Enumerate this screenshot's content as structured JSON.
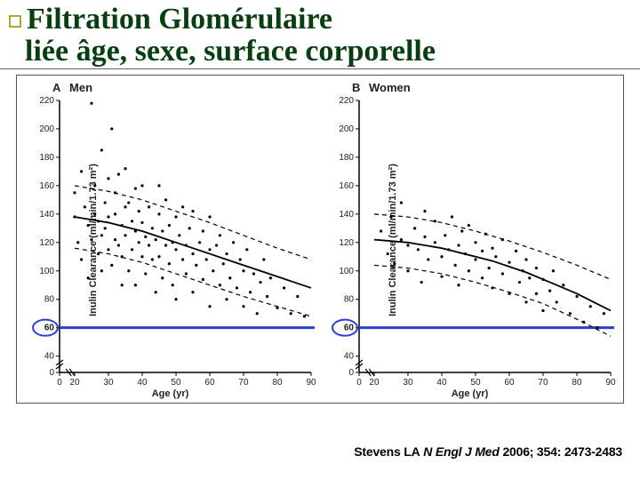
{
  "title": {
    "line1": "Filtration Glomérulaire",
    "line2": "liée âge, sexe, surface corporelle",
    "color": "#083f11",
    "fontsize": 34
  },
  "citation": {
    "author": "Stevens LA",
    "journal": "N Engl J Med",
    "year_vol_pages": "2006; 354: 2473-2483"
  },
  "common_axes": {
    "x": {
      "label": "Age (yr)",
      "min": 0,
      "max": 90,
      "tick_step": 10,
      "break_before": 20
    },
    "y": {
      "label": "Inulin Clearance (ml/min/1.73 m²)",
      "min": 0,
      "max": 220,
      "tick_step": 20,
      "break_before": 40,
      "highlight_tick": 60
    },
    "tick_fontsize": 10,
    "label_fontsize": 11,
    "axis_color": "#000000",
    "tick_len": 4,
    "break_symbol": "//"
  },
  "highlight_line": {
    "y_value": 60,
    "color": "#2b3fd1",
    "width": 3
  },
  "highlight_circle": {
    "color": "#2b3fd1",
    "width": 2,
    "rx": 14,
    "ry": 9
  },
  "curve_style": {
    "mean_color": "#000000",
    "mean_width": 1.8,
    "ci_color": "#000000",
    "ci_width": 1.2,
    "ci_dash": "5,4",
    "marker_size": 1.6,
    "marker_color": "#000000"
  },
  "panels": [
    {
      "letter": "A",
      "label": "Men",
      "mean_curve": [
        [
          20,
          138
        ],
        [
          25,
          136
        ],
        [
          30,
          134
        ],
        [
          35,
          131
        ],
        [
          40,
          128
        ],
        [
          45,
          124
        ],
        [
          50,
          120
        ],
        [
          55,
          116
        ],
        [
          60,
          112
        ],
        [
          65,
          108
        ],
        [
          70,
          104
        ],
        [
          75,
          100
        ],
        [
          80,
          96
        ],
        [
          85,
          92
        ],
        [
          90,
          88
        ]
      ],
      "upper_ci": [
        [
          20,
          160
        ],
        [
          30,
          156
        ],
        [
          40,
          150
        ],
        [
          50,
          142
        ],
        [
          60,
          134
        ],
        [
          70,
          125
        ],
        [
          80,
          116
        ],
        [
          90,
          108
        ]
      ],
      "lower_ci": [
        [
          20,
          116
        ],
        [
          30,
          112
        ],
        [
          40,
          106
        ],
        [
          50,
          98
        ],
        [
          60,
          90
        ],
        [
          70,
          82
        ],
        [
          80,
          75
        ],
        [
          90,
          68
        ]
      ],
      "points": [
        [
          20,
          138
        ],
        [
          20,
          155
        ],
        [
          21,
          120
        ],
        [
          22,
          170
        ],
        [
          22,
          108
        ],
        [
          23,
          145
        ],
        [
          24,
          132
        ],
        [
          24,
          95
        ],
        [
          25,
          218
        ],
        [
          25,
          122
        ],
        [
          26,
          140
        ],
        [
          26,
          160
        ],
        [
          27,
          112
        ],
        [
          27,
          135
        ],
        [
          28,
          125
        ],
        [
          28,
          185
        ],
        [
          28,
          100
        ],
        [
          29,
          148
        ],
        [
          29,
          130
        ],
        [
          30,
          115
        ],
        [
          30,
          138
        ],
        [
          30,
          165
        ],
        [
          31,
          200
        ],
        [
          31,
          104
        ],
        [
          32,
          140
        ],
        [
          32,
          122
        ],
        [
          32,
          155
        ],
        [
          33,
          118
        ],
        [
          33,
          168
        ],
        [
          34,
          110
        ],
        [
          34,
          132
        ],
        [
          34,
          90
        ],
        [
          35,
          145
        ],
        [
          35,
          125
        ],
        [
          35,
          172
        ],
        [
          36,
          100
        ],
        [
          36,
          148
        ],
        [
          37,
          135
        ],
        [
          37,
          115
        ],
        [
          38,
          128
        ],
        [
          38,
          158
        ],
        [
          38,
          90
        ],
        [
          39,
          120
        ],
        [
          39,
          142
        ],
        [
          40,
          110
        ],
        [
          40,
          134
        ],
        [
          40,
          160
        ],
        [
          41,
          124
        ],
        [
          41,
          98
        ],
        [
          42,
          118
        ],
        [
          42,
          145
        ],
        [
          43,
          108
        ],
        [
          43,
          130
        ],
        [
          44,
          85
        ],
        [
          44,
          122
        ],
        [
          45,
          140
        ],
        [
          45,
          110
        ],
        [
          45,
          160
        ],
        [
          46,
          95
        ],
        [
          46,
          128
        ],
        [
          47,
          118
        ],
        [
          47,
          150
        ],
        [
          48,
          105
        ],
        [
          48,
          132
        ],
        [
          49,
          90
        ],
        [
          49,
          120
        ],
        [
          50,
          115
        ],
        [
          50,
          138
        ],
        [
          50,
          80
        ],
        [
          51,
          125
        ],
        [
          52,
          108
        ],
        [
          52,
          145
        ],
        [
          53,
          98
        ],
        [
          53,
          118
        ],
        [
          54,
          130
        ],
        [
          55,
          85
        ],
        [
          55,
          112
        ],
        [
          55,
          142
        ],
        [
          56,
          104
        ],
        [
          57,
          120
        ],
        [
          58,
          94
        ],
        [
          58,
          128
        ],
        [
          59,
          108
        ],
        [
          60,
          75
        ],
        [
          60,
          115
        ],
        [
          60,
          138
        ],
        [
          61,
          100
        ],
        [
          62,
          118
        ],
        [
          63,
          90
        ],
        [
          63,
          125
        ],
        [
          64,
          105
        ],
        [
          65,
          80
        ],
        [
          65,
          112
        ],
        [
          66,
          95
        ],
        [
          67,
          120
        ],
        [
          68,
          88
        ],
        [
          69,
          108
        ],
        [
          70,
          75
        ],
        [
          70,
          100
        ],
        [
          71,
          115
        ],
        [
          72,
          85
        ],
        [
          73,
          98
        ],
        [
          74,
          70
        ],
        [
          75,
          92
        ],
        [
          76,
          108
        ],
        [
          77,
          82
        ],
        [
          78,
          95
        ],
        [
          80,
          74
        ],
        [
          82,
          88
        ],
        [
          84,
          70
        ],
        [
          86,
          82
        ],
        [
          88,
          68
        ]
      ]
    },
    {
      "letter": "B",
      "label": "Women",
      "mean_curve": [
        [
          20,
          122
        ],
        [
          25,
          121
        ],
        [
          30,
          120
        ],
        [
          35,
          118
        ],
        [
          40,
          116
        ],
        [
          45,
          113
        ],
        [
          50,
          110
        ],
        [
          55,
          107
        ],
        [
          60,
          103
        ],
        [
          65,
          99
        ],
        [
          70,
          94
        ],
        [
          75,
          89
        ],
        [
          80,
          84
        ],
        [
          85,
          78
        ],
        [
          90,
          72
        ]
      ],
      "upper_ci": [
        [
          20,
          140
        ],
        [
          30,
          138
        ],
        [
          40,
          134
        ],
        [
          50,
          128
        ],
        [
          60,
          121
        ],
        [
          70,
          113
        ],
        [
          80,
          104
        ],
        [
          90,
          94
        ]
      ],
      "lower_ci": [
        [
          20,
          104
        ],
        [
          30,
          102
        ],
        [
          40,
          98
        ],
        [
          50,
          92
        ],
        [
          60,
          85
        ],
        [
          70,
          77
        ],
        [
          80,
          66
        ],
        [
          90,
          54
        ]
      ],
      "points": [
        [
          22,
          128
        ],
        [
          24,
          112
        ],
        [
          25,
          138
        ],
        [
          26,
          105
        ],
        [
          28,
          122
        ],
        [
          28,
          148
        ],
        [
          30,
          118
        ],
        [
          30,
          100
        ],
        [
          32,
          130
        ],
        [
          33,
          115
        ],
        [
          34,
          92
        ],
        [
          35,
          124
        ],
        [
          35,
          142
        ],
        [
          36,
          108
        ],
        [
          38,
          120
        ],
        [
          38,
          135
        ],
        [
          40,
          110
        ],
        [
          40,
          96
        ],
        [
          41,
          125
        ],
        [
          42,
          115
        ],
        [
          43,
          138
        ],
        [
          44,
          104
        ],
        [
          45,
          118
        ],
        [
          45,
          90
        ],
        [
          46,
          128
        ],
        [
          47,
          112
        ],
        [
          48,
          100
        ],
        [
          48,
          132
        ],
        [
          50,
          108
        ],
        [
          50,
          120
        ],
        [
          52,
          95
        ],
        [
          52,
          114
        ],
        [
          53,
          126
        ],
        [
          54,
          102
        ],
        [
          55,
          116
        ],
        [
          55,
          88
        ],
        [
          56,
          110
        ],
        [
          58,
          98
        ],
        [
          58,
          122
        ],
        [
          60,
          84
        ],
        [
          60,
          106
        ],
        [
          62,
          114
        ],
        [
          63,
          92
        ],
        [
          64,
          100
        ],
        [
          65,
          78
        ],
        [
          65,
          108
        ],
        [
          66,
          95
        ],
        [
          68,
          84
        ],
        [
          68,
          102
        ],
        [
          70,
          72
        ],
        [
          70,
          94
        ],
        [
          72,
          86
        ],
        [
          73,
          100
        ],
        [
          74,
          78
        ],
        [
          76,
          90
        ],
        [
          78,
          70
        ],
        [
          80,
          82
        ],
        [
          82,
          64
        ],
        [
          84,
          75
        ],
        [
          86,
          60
        ],
        [
          88,
          70
        ]
      ]
    }
  ]
}
